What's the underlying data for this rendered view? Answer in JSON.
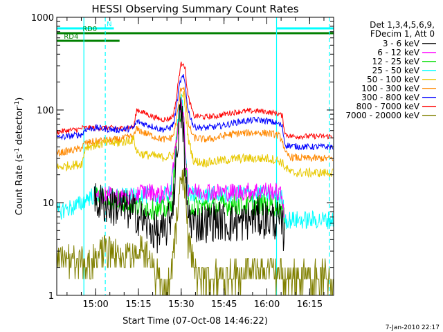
{
  "chart_data": {
    "type": "line",
    "title": "HESSI Observing Summary Count Rates",
    "xlabel": "Start Time (07-Oct-08 14:46:22)",
    "ylabel_main": "Count Rate (s",
    "ylabel_sup1": "-1",
    "ylabel_mid": " detector",
    "ylabel_sup2": "-1",
    "ylabel_end": ")",
    "yscale": "log",
    "ylim": [
      1,
      1000
    ],
    "xlim_minutes_after_start": [
      0,
      97
    ],
    "y_ticks": [
      {
        "value": 1,
        "label": "1"
      },
      {
        "value": 10,
        "label": "10"
      },
      {
        "value": 100,
        "label": "100"
      },
      {
        "value": 1000,
        "label": "1000"
      }
    ],
    "x_ticks": [
      {
        "minute": 13.6,
        "label": "15:00"
      },
      {
        "minute": 28.6,
        "label": "15:15"
      },
      {
        "minute": 43.6,
        "label": "15:30"
      },
      {
        "minute": 58.6,
        "label": "15:45"
      },
      {
        "minute": 73.6,
        "label": "16:00"
      },
      {
        "minute": 88.6,
        "label": "16:15"
      }
    ],
    "legend_header": [
      "Det 1,3,4,5,6,9,",
      "FDecim 1, Att 0"
    ],
    "series": [
      {
        "name": "3 - 6 keV",
        "color": "#000000",
        "x": [
          0,
          8,
          9,
          10,
          13,
          14,
          16,
          18,
          22,
          24,
          27,
          28,
          29,
          31,
          34,
          36,
          38,
          40,
          41,
          42,
          42.8,
          43.5,
          44.4,
          45,
          46,
          48,
          52,
          56,
          60,
          64,
          70,
          74,
          77,
          78,
          79,
          80,
          88,
          90,
          97
        ],
        "y": [
          null,
          null,
          null,
          null,
          10,
          10,
          10,
          9,
          9,
          8.5,
          7.8,
          7.5,
          7,
          6,
          5,
          4.5,
          5,
          7,
          12,
          32,
          75,
          90,
          60,
          18,
          7.5,
          6,
          6,
          6.5,
          6,
          6,
          7,
          6.5,
          6.5,
          6,
          5.5,
          4,
          null,
          null,
          null
        ]
      },
      {
        "name": "6 - 12 keV",
        "color": "#ff00ff",
        "x": [
          0,
          8,
          9,
          10,
          13,
          14,
          16,
          18,
          22,
          24,
          27,
          28,
          29,
          31,
          34,
          36,
          38,
          40,
          41,
          42,
          42.8,
          43.5,
          44.4,
          45,
          46,
          48,
          52,
          56,
          60,
          64,
          70,
          74,
          77,
          78,
          79,
          80,
          88,
          90,
          97
        ],
        "y": [
          null,
          null,
          null,
          null,
          12,
          12.5,
          12,
          12,
          11.5,
          11.5,
          11,
          12,
          13,
          13,
          13,
          12,
          13,
          13,
          25,
          50,
          90,
          115,
          80,
          40,
          15,
          13,
          13.5,
          13,
          13,
          13,
          13.5,
          13.5,
          13,
          12.5,
          11.5,
          7,
          null,
          null,
          null
        ]
      },
      {
        "name": "12 - 25 keV",
        "color": "#00dd00",
        "x": [
          0,
          8,
          9,
          10,
          13,
          14,
          16,
          18,
          22,
          24,
          27,
          28,
          29,
          31,
          34,
          36,
          38,
          40,
          41,
          42,
          42.8,
          43.5,
          44.4,
          45,
          46,
          48,
          52,
          56,
          60,
          64,
          70,
          74,
          77,
          78,
          79,
          80,
          88,
          90,
          97
        ],
        "y": [
          null,
          null,
          null,
          null,
          11.5,
          12,
          12,
          11,
          10.5,
          10,
          9.5,
          9,
          9,
          9,
          8.5,
          8.2,
          8.5,
          9,
          18,
          42,
          85,
          105,
          72,
          32,
          10,
          9,
          9.2,
          9,
          9.5,
          9.5,
          9.5,
          9.5,
          9.2,
          8.8,
          8,
          6,
          null,
          null,
          null
        ]
      },
      {
        "name": "25 - 50 keV",
        "color": "#00ffff",
        "x": [
          0,
          3,
          6,
          8,
          9,
          10,
          13,
          14,
          16,
          18,
          22,
          24,
          27,
          28,
          29,
          31,
          34,
          36,
          38,
          40,
          41,
          42,
          42.8,
          43.5,
          44.4,
          45,
          46,
          48,
          52,
          56,
          60,
          64,
          70,
          74,
          77,
          78,
          79,
          80,
          82,
          86,
          90,
          97
        ],
        "y": [
          8,
          8.5,
          9,
          9.5,
          10,
          11,
          12,
          12.5,
          12.5,
          12,
          11.5,
          11.5,
          11.5,
          12,
          12.5,
          12,
          12,
          11.5,
          12,
          13,
          25,
          55,
          100,
          128,
          88,
          38,
          13,
          12,
          12,
          12,
          12,
          12.5,
          12.5,
          12,
          12,
          11.5,
          11,
          6.5,
          6.5,
          6.5,
          6.5,
          6.5
        ]
      },
      {
        "name": "50 - 100 keV",
        "color": "#e8c800",
        "x": [
          0,
          4,
          8,
          9,
          10,
          12,
          14,
          16,
          18,
          22,
          24,
          27,
          28,
          29,
          31,
          34,
          36,
          38,
          40,
          41,
          42,
          42.8,
          43.5,
          44.4,
          45,
          46,
          48,
          52,
          56,
          60,
          64,
          70,
          74,
          77,
          78,
          79,
          80,
          82,
          86,
          90,
          97
        ],
        "y": [
          24,
          25,
          26,
          27,
          40,
          41,
          42,
          43,
          44,
          44,
          46,
          48,
          36,
          34,
          33,
          32,
          31,
          31,
          32,
          33,
          48,
          85,
          135,
          150,
          110,
          50,
          28,
          27,
          28,
          29,
          30,
          30,
          30,
          29,
          28,
          27,
          24,
          21,
          21,
          21,
          21
        ]
      },
      {
        "name": "100 - 300 keV",
        "color": "#ff8800",
        "x": [
          0,
          4,
          8,
          9,
          10,
          12,
          14,
          16,
          18,
          22,
          24,
          27,
          28,
          29,
          31,
          34,
          36,
          38,
          40,
          41,
          42,
          42.8,
          43.5,
          44.4,
          45,
          46,
          48,
          52,
          56,
          60,
          64,
          70,
          74,
          77,
          78,
          79,
          80,
          82,
          86,
          90,
          97
        ],
        "y": [
          34,
          36,
          38,
          40,
          44,
          45,
          46,
          47,
          47,
          48,
          50,
          52,
          62,
          60,
          56,
          52,
          49,
          48,
          50,
          55,
          80,
          120,
          170,
          180,
          150,
          72,
          50,
          48,
          50,
          54,
          56,
          57,
          56,
          54,
          52,
          48,
          34,
          31,
          30,
          30,
          30
        ]
      },
      {
        "name": "300 - 800 keV",
        "color": "#0000ff",
        "x": [
          0,
          4,
          8,
          9,
          10,
          12,
          14,
          16,
          18,
          22,
          24,
          27,
          28,
          29,
          31,
          34,
          36,
          38,
          40,
          41,
          42,
          42.8,
          43.5,
          44.4,
          45,
          46,
          48,
          52,
          56,
          60,
          64,
          70,
          74,
          77,
          78,
          79,
          80,
          82,
          86,
          90,
          97
        ],
        "y": [
          50,
          52,
          54,
          55,
          62,
          63,
          64,
          63,
          62,
          61,
          62,
          64,
          75,
          74,
          70,
          66,
          62,
          62,
          65,
          72,
          110,
          170,
          215,
          225,
          190,
          100,
          66,
          64,
          66,
          70,
          75,
          78,
          76,
          72,
          70,
          66,
          42,
          41,
          40,
          40,
          40
        ]
      },
      {
        "name": "800 - 7000 keV",
        "color": "#ff0000",
        "x": [
          0,
          4,
          8,
          9,
          10,
          12,
          14,
          16,
          18,
          22,
          24,
          27,
          28,
          29,
          31,
          34,
          36,
          38,
          40,
          41,
          42,
          42.8,
          43.5,
          44.4,
          45,
          46,
          48,
          52,
          56,
          60,
          64,
          70,
          74,
          77,
          78,
          79,
          80,
          82,
          86,
          90,
          97
        ],
        "y": [
          58,
          60,
          62,
          64,
          64,
          64,
          64,
          64,
          64,
          63,
          64,
          66,
          100,
          98,
          92,
          84,
          80,
          79,
          82,
          92,
          140,
          230,
          310,
          330,
          270,
          140,
          86,
          84,
          86,
          92,
          96,
          98,
          95,
          92,
          90,
          86,
          55,
          52,
          52,
          52,
          52
        ]
      },
      {
        "name": "7000 - 20000 keV",
        "color": "#808000",
        "x": [
          0,
          4,
          6,
          8,
          10,
          12,
          14,
          16,
          18,
          20,
          22,
          24,
          26,
          28,
          30,
          32,
          34,
          36,
          38,
          39,
          40,
          41,
          42,
          42.8,
          43.5,
          44.4,
          45,
          46,
          48,
          50,
          52,
          56,
          60,
          64,
          68,
          72,
          76,
          80,
          84,
          88,
          92,
          97
        ],
        "y": [
          2.5,
          2.5,
          2.4,
          2.3,
          2.2,
          2.3,
          2.6,
          3,
          3,
          3.1,
          2.6,
          2.4,
          2.7,
          3.3,
          3.5,
          2.5,
          1.8,
          1.5,
          1.2,
          1.3,
          1.8,
          3,
          6,
          14,
          20,
          18,
          11,
          4,
          2,
          1.5,
          1.5,
          1.6,
          1.7,
          1.8,
          1.8,
          1.8,
          1.8,
          1.6,
          1.6,
          1.6,
          1.6,
          1.6
        ]
      }
    ],
    "vertical_lines": [
      {
        "minute": 9.5,
        "style": "solid"
      },
      {
        "minute": 17.0,
        "style": "dashed"
      },
      {
        "minute": 77.0,
        "style": "solid"
      },
      {
        "minute": 95.5,
        "style": "dashed"
      }
    ],
    "flag_bars": [
      {
        "label": "N",
        "color": "#00ffff",
        "segments": [
          [
            0,
            20
          ],
          [
            77,
            97
          ]
        ]
      },
      {
        "label": "RD0",
        "color": "#008000",
        "segments": [
          [
            0,
            97
          ]
        ]
      },
      {
        "label": "RD4",
        "color": "#008000",
        "segments": [
          [
            0,
            22
          ]
        ]
      }
    ],
    "footer_timestamp": "7-Jan-2010 22:17"
  },
  "colors": {
    "axis": "#000000",
    "vertical_line": "#00ffff",
    "background": "#ffffff"
  }
}
